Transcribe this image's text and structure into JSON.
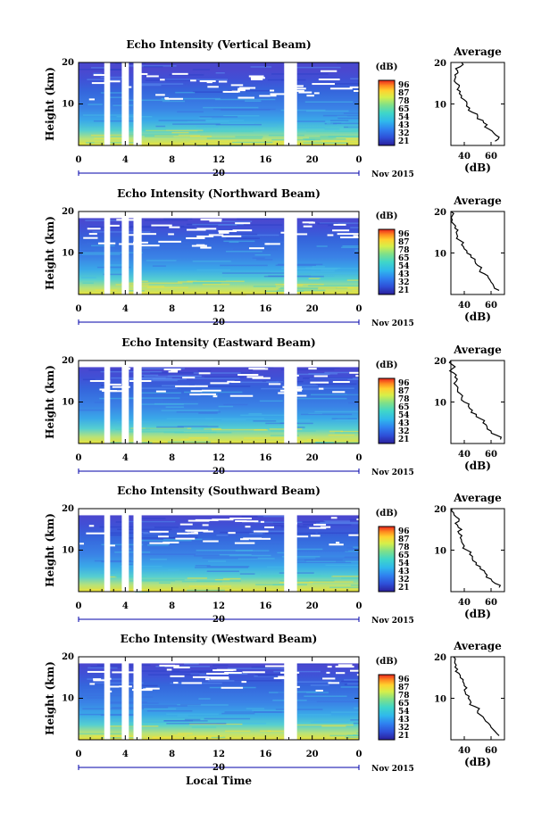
{
  "chart_data": [
    {
      "type": "heatmap",
      "title": "Echo Intensity (Vertical Beam)",
      "ylabel": "Height (km)",
      "y_ticks": [
        "20",
        "10"
      ],
      "x_ticks": [
        "0",
        "4",
        "8",
        "12",
        "16",
        "20",
        "0"
      ],
      "date_label": "20",
      "month_label": "Nov 2015",
      "colorbar_unit": "(dB)",
      "colorbar_labels": [
        "96",
        "87",
        "78",
        "65",
        "54",
        "43",
        "32",
        "21"
      ],
      "avg_title": "Average",
      "avg_xticks": [
        "40",
        "60"
      ],
      "avg_yticks": [
        "20",
        "10"
      ],
      "avg_xlabel": "(dB)",
      "ylim": [
        0,
        20
      ],
      "xlim": [
        0,
        24
      ],
      "gaps_hours": [
        [
          2.2,
          2.7
        ],
        [
          3.7,
          4.3
        ],
        [
          4.7,
          5.4
        ],
        [
          17.6,
          18.7
        ]
      ],
      "average_profile": {
        "height_km": [
          1,
          2,
          3,
          4,
          5,
          6,
          7,
          8,
          9,
          10,
          11,
          12,
          13,
          14,
          15,
          16,
          17,
          18,
          19,
          20
        ],
        "db": [
          63,
          66,
          62,
          58,
          57,
          54,
          50,
          46,
          44,
          42,
          40,
          38,
          37,
          36,
          34,
          33,
          33,
          35,
          37,
          38
        ]
      }
    },
    {
      "type": "heatmap",
      "title": "Echo Intensity (Northward Beam)",
      "ylabel": "Height (km)",
      "y_ticks": [
        "20",
        "10"
      ],
      "x_ticks": [
        "0",
        "4",
        "8",
        "12",
        "16",
        "20",
        "0"
      ],
      "date_label": "20",
      "month_label": "Nov 2015",
      "colorbar_unit": "(dB)",
      "colorbar_labels": [
        "96",
        "87",
        "78",
        "65",
        "54",
        "43",
        "32",
        "21"
      ],
      "avg_title": "Average",
      "avg_xticks": [
        "40",
        "60"
      ],
      "avg_yticks": [
        "20",
        "10"
      ],
      "avg_xlabel": "(dB)",
      "ylim": [
        0,
        20
      ],
      "xlim": [
        0,
        24
      ],
      "gaps_hours": [
        [
          2.2,
          2.7
        ],
        [
          3.7,
          4.3
        ],
        [
          4.7,
          5.4
        ],
        [
          17.6,
          18.7
        ]
      ],
      "average_profile": {
        "height_km": [
          1,
          2,
          3,
          4,
          5,
          6,
          7,
          8,
          9,
          10,
          11,
          12,
          13,
          14,
          15,
          16,
          17,
          18,
          19,
          20
        ],
        "db": [
          66,
          62,
          60,
          58,
          55,
          52,
          50,
          48,
          45,
          42,
          40,
          38,
          37,
          35,
          34,
          33,
          32,
          31,
          31,
          30
        ]
      }
    },
    {
      "type": "heatmap",
      "title": "Echo Intensity (Eastward Beam)",
      "ylabel": "Height (km)",
      "y_ticks": [
        "20",
        "10"
      ],
      "x_ticks": [
        "0",
        "4",
        "8",
        "12",
        "16",
        "20",
        "0"
      ],
      "date_label": "20",
      "month_label": "Nov 2015",
      "colorbar_unit": "(dB)",
      "colorbar_labels": [
        "96",
        "87",
        "78",
        "65",
        "54",
        "43",
        "32",
        "21"
      ],
      "avg_title": "Average",
      "avg_xticks": [
        "40",
        "60"
      ],
      "avg_yticks": [
        "20",
        "10"
      ],
      "avg_xlabel": "(dB)",
      "ylim": [
        0,
        20
      ],
      "xlim": [
        0,
        24
      ],
      "gaps_hours": [
        [
          2.2,
          2.7
        ],
        [
          3.7,
          4.3
        ],
        [
          4.7,
          5.4
        ],
        [
          17.6,
          18.7
        ]
      ],
      "average_profile": {
        "height_km": [
          1,
          2,
          3,
          4,
          5,
          6,
          7,
          8,
          9,
          10,
          11,
          12,
          13,
          14,
          15,
          16,
          17,
          18,
          19,
          20
        ],
        "db": [
          67,
          64,
          60,
          57,
          54,
          52,
          49,
          46,
          43,
          40,
          38,
          37,
          35,
          34,
          34,
          33,
          32,
          31,
          31,
          30
        ]
      }
    },
    {
      "type": "heatmap",
      "title": "Echo Intensity (Southward Beam)",
      "ylabel": "Height (km)",
      "y_ticks": [
        "20",
        "10"
      ],
      "x_ticks": [
        "0",
        "4",
        "8",
        "12",
        "16",
        "20",
        "0"
      ],
      "date_label": "20",
      "month_label": "Nov 2015",
      "colorbar_unit": "(dB)",
      "colorbar_labels": [
        "96",
        "87",
        "78",
        "65",
        "54",
        "43",
        "32",
        "21"
      ],
      "avg_title": "Average",
      "avg_xticks": [
        "40",
        "60"
      ],
      "avg_yticks": [
        "20",
        "10"
      ],
      "avg_xlabel": "(dB)",
      "ylim": [
        0,
        20
      ],
      "xlim": [
        0,
        24
      ],
      "gaps_hours": [
        [
          2.2,
          2.7
        ],
        [
          3.7,
          4.3
        ],
        [
          4.7,
          5.4
        ],
        [
          17.6,
          18.7
        ]
      ],
      "average_profile": {
        "height_km": [
          1,
          2,
          3,
          4,
          5,
          6,
          7,
          8,
          9,
          10,
          11,
          12,
          13,
          14,
          15,
          16,
          17,
          18,
          19,
          20
        ],
        "db": [
          66,
          63,
          60,
          57,
          55,
          52,
          49,
          46,
          44,
          42,
          40,
          38,
          37,
          36,
          38,
          35,
          36,
          34,
          32,
          31
        ]
      }
    },
    {
      "type": "heatmap",
      "title": "Echo Intensity (Westward Beam)",
      "ylabel": "Height (km)",
      "y_ticks": [
        "20",
        "10"
      ],
      "x_ticks": [
        "0",
        "4",
        "8",
        "12",
        "16",
        "20",
        "0"
      ],
      "date_label": "20",
      "month_label": "Nov 2015",
      "colorbar_unit": "(dB)",
      "colorbar_labels": [
        "96",
        "87",
        "78",
        "65",
        "54",
        "43",
        "32",
        "21"
      ],
      "avg_title": "Average",
      "avg_xticks": [
        "40",
        "60"
      ],
      "avg_yticks": [
        "20",
        "10"
      ],
      "avg_xlabel": "(dB)",
      "ylim": [
        0,
        20
      ],
      "xlim": [
        0,
        24
      ],
      "gaps_hours": [
        [
          2.2,
          2.7
        ],
        [
          3.7,
          4.3
        ],
        [
          4.7,
          5.4
        ],
        [
          17.6,
          18.7
        ]
      ],
      "average_profile": {
        "height_km": [
          1,
          2,
          3,
          4,
          5,
          6,
          7,
          8,
          9,
          10,
          11,
          12,
          13,
          14,
          15,
          16,
          17,
          18,
          19,
          20
        ],
        "db": [
          66,
          63,
          60,
          58,
          55,
          52,
          50,
          48,
          45,
          43,
          41,
          40,
          40,
          39,
          37,
          36,
          35,
          34,
          33,
          32
        ]
      }
    }
  ],
  "xlabel": "Local Time",
  "colors": {
    "colormap": [
      "#2a1f9a",
      "#2e4fd8",
      "#2f82f0",
      "#2fb8ec",
      "#3fd6c8",
      "#7ee08a",
      "#d6ef4a",
      "#ffd22f",
      "#ff8a1f",
      "#e8231e"
    ]
  }
}
